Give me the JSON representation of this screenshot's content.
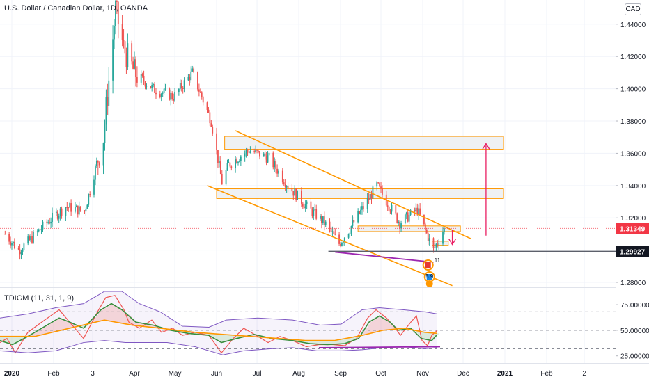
{
  "header": {
    "title": "U.S. Dollar / Canadian Dollar, 1D, OANDA",
    "currency_button": "CAD"
  },
  "indicator": {
    "label": "TDIGM (11, 31, 1, 9)",
    "ticks": [
      "75.00000",
      "50.00000",
      "25.00000"
    ]
  },
  "price_tags": {
    "last": "1.31349",
    "support": "1.29927"
  },
  "markers": {
    "earnings_top": "11",
    "earnings_bottom": "5 9"
  },
  "colors": {
    "up": "#26a69a",
    "down": "#ef5350",
    "channel": "#ff9800",
    "zone_border": "#ff9800",
    "zone_fill": "#eceff1",
    "arrow": "#e91e63",
    "support_line": "#5d606b",
    "divergence": "#9c27b0",
    "last_tag": "#f23645"
  },
  "chart_data": [
    {
      "type": "candlestick",
      "title": "U.S. Dollar / Canadian Dollar, 1D, OANDA",
      "x_ticks": [
        "2020",
        "Feb",
        "3",
        "Apr",
        "May",
        "Jun",
        "Jul",
        "Aug",
        "Sep",
        "Oct",
        "Nov",
        "Dec",
        "2021",
        "Feb",
        "2"
      ],
      "y_ticks": [
        "1.44000",
        "1.42000",
        "1.40000",
        "1.38000",
        "1.36000",
        "1.34000",
        "1.32000",
        "1.30000",
        "1.28000"
      ],
      "ylim": [
        1.277,
        1.455
      ],
      "price_anchors": [
        {
          "date": "2019-12-27",
          "close": 1.31
        },
        {
          "date": "2020-01-06",
          "close": 1.3
        },
        {
          "date": "2020-01-13",
          "close": 1.305
        },
        {
          "date": "2020-01-27",
          "close": 1.317
        },
        {
          "date": "2020-02-10",
          "close": 1.327
        },
        {
          "date": "2020-02-24",
          "close": 1.324
        },
        {
          "date": "2020-03-09",
          "close": 1.37
        },
        {
          "date": "2020-03-18",
          "close": 1.449
        },
        {
          "date": "2020-03-24",
          "close": 1.425
        },
        {
          "date": "2020-04-01",
          "close": 1.41
        },
        {
          "date": "2020-04-15",
          "close": 1.4
        },
        {
          "date": "2020-04-30",
          "close": 1.395
        },
        {
          "date": "2020-05-14",
          "close": 1.41
        },
        {
          "date": "2020-05-28",
          "close": 1.38
        },
        {
          "date": "2020-06-05",
          "close": 1.342
        },
        {
          "date": "2020-06-10",
          "close": 1.353
        },
        {
          "date": "2020-06-25",
          "close": 1.362
        },
        {
          "date": "2020-07-10",
          "close": 1.357
        },
        {
          "date": "2020-07-24",
          "close": 1.34
        },
        {
          "date": "2020-08-07",
          "close": 1.327
        },
        {
          "date": "2020-08-20",
          "close": 1.317
        },
        {
          "date": "2020-08-31",
          "close": 1.304
        },
        {
          "date": "2020-09-10",
          "close": 1.316
        },
        {
          "date": "2020-09-28",
          "close": 1.34
        },
        {
          "date": "2020-10-15",
          "close": 1.317
        },
        {
          "date": "2020-10-28",
          "close": 1.325
        },
        {
          "date": "2020-11-04",
          "close": 1.31
        },
        {
          "date": "2020-11-09",
          "close": 1.3
        },
        {
          "date": "2020-11-17",
          "close": 1.31349
        }
      ],
      "last_price": 1.31349,
      "support_level": 1.29927,
      "zones": [
        {
          "from": "2020-06-07",
          "to": "2020-12-31",
          "low": 1.3625,
          "high": 1.3705
        },
        {
          "from": "2020-06-01",
          "to": "2020-12-31",
          "low": 1.332,
          "high": 1.338
        },
        {
          "from": "2020-09-14",
          "to": "2020-11-29",
          "low": 1.3115,
          "high": 1.315
        },
        {
          "from": "2020-11-08",
          "to": "2020-11-20",
          "low": 1.303,
          "high": 1.3055
        }
      ],
      "channel_upper": [
        {
          "date": "2020-06-15",
          "price": 1.374
        },
        {
          "date": "2020-12-07",
          "price": 1.307
        }
      ],
      "channel_lower": [
        {
          "date": "2020-05-25",
          "price": 1.34
        },
        {
          "date": "2020-11-23",
          "price": 1.278
        }
      ],
      "up_arrow": {
        "date": "2020-12-18",
        "from": 1.309,
        "to": 1.366
      },
      "down_arrow": {
        "date": "2020-11-23",
        "from": 1.3125,
        "to": 1.3035
      }
    },
    {
      "type": "line",
      "title": "TDIGM (11, 31, 1, 9)",
      "y_ticks": [
        "75.00000",
        "50.00000",
        "25.00000"
      ],
      "ylim": [
        18,
        90
      ],
      "levels": [
        68,
        50,
        32
      ],
      "series": [
        {
          "name": "RSI",
          "color": "#ef5350",
          "values": [
            [
              0,
              38
            ],
            [
              10,
              42
            ],
            [
              22,
              28
            ],
            [
              40,
              48
            ],
            [
              60,
              58
            ],
            [
              85,
              70
            ],
            [
              95,
              62
            ],
            [
              120,
              42
            ],
            [
              140,
              68
            ],
            [
              152,
              82
            ],
            [
              165,
              84
            ],
            [
              178,
              70
            ],
            [
              185,
              58
            ],
            [
              200,
              52
            ],
            [
              218,
              60
            ],
            [
              232,
              48
            ],
            [
              248,
              52
            ],
            [
              262,
              45
            ],
            [
              280,
              48
            ],
            [
              300,
              45
            ],
            [
              318,
              28
            ],
            [
              335,
              42
            ],
            [
              350,
              52
            ],
            [
              368,
              45
            ],
            [
              385,
              38
            ],
            [
              402,
              44
            ],
            [
              420,
              40
            ],
            [
              440,
              34
            ],
            [
              458,
              36
            ],
            [
              478,
              36
            ],
            [
              495,
              35
            ],
            [
              512,
              42
            ],
            [
              528,
              62
            ],
            [
              540,
              70
            ],
            [
              555,
              62
            ],
            [
              568,
              52
            ],
            [
              575,
              45
            ],
            [
              590,
              58
            ],
            [
              598,
              64
            ],
            [
              606,
              40
            ],
            [
              614,
              35
            ],
            [
              620,
              45
            ],
            [
              628,
              50
            ]
          ]
        },
        {
          "name": "Signal",
          "color": "#388e3c",
          "values": [
            [
              0,
              40
            ],
            [
              18,
              36
            ],
            [
              40,
              44
            ],
            [
              60,
              52
            ],
            [
              85,
              62
            ],
            [
              100,
              58
            ],
            [
              120,
              52
            ],
            [
              145,
              70
            ],
            [
              160,
              76
            ],
            [
              175,
              70
            ],
            [
              195,
              58
            ],
            [
              220,
              55
            ],
            [
              245,
              50
            ],
            [
              270,
              47
            ],
            [
              300,
              45
            ],
            [
              318,
              38
            ],
            [
              340,
              42
            ],
            [
              365,
              46
            ],
            [
              390,
              42
            ],
            [
              420,
              40
            ],
            [
              445,
              37
            ],
            [
              470,
              36
            ],
            [
              495,
              37
            ],
            [
              515,
              42
            ],
            [
              530,
              58
            ],
            [
              545,
              64
            ],
            [
              560,
              58
            ],
            [
              572,
              50
            ],
            [
              590,
              52
            ],
            [
              605,
              42
            ],
            [
              620,
              40
            ],
            [
              628,
              46
            ]
          ]
        },
        {
          "name": "Base",
          "color": "#ff9800",
          "values": [
            [
              0,
              44
            ],
            [
              50,
              44
            ],
            [
              100,
              52
            ],
            [
              150,
              60
            ],
            [
              190,
              55
            ],
            [
              230,
              52
            ],
            [
              280,
              48
            ],
            [
              320,
              46
            ],
            [
              360,
              44
            ],
            [
              400,
              42
            ],
            [
              440,
              40
            ],
            [
              480,
              40
            ],
            [
              520,
              45
            ],
            [
              550,
              50
            ],
            [
              580,
              52
            ],
            [
              610,
              48
            ],
            [
              628,
              47
            ]
          ]
        },
        {
          "name": "Upper band",
          "color": "#7e57c2",
          "values": [
            [
              0,
              62
            ],
            [
              40,
              66
            ],
            [
              80,
              72
            ],
            [
              120,
              76
            ],
            [
              150,
              88
            ],
            [
              175,
              88
            ],
            [
              200,
              76
            ],
            [
              230,
              68
            ],
            [
              262,
              54
            ],
            [
              300,
              53
            ],
            [
              325,
              60
            ],
            [
              370,
              62
            ],
            [
              420,
              60
            ],
            [
              460,
              55
            ],
            [
              490,
              56
            ],
            [
              520,
              70
            ],
            [
              545,
              72
            ],
            [
              580,
              70
            ],
            [
              610,
              68
            ],
            [
              628,
              66
            ]
          ]
        },
        {
          "name": "Lower band",
          "color": "#7e57c2",
          "values": [
            [
              0,
              30
            ],
            [
              40,
              28
            ],
            [
              80,
              30
            ],
            [
              120,
              38
            ],
            [
              150,
              40
            ],
            [
              180,
              38
            ],
            [
              210,
              38
            ],
            [
              240,
              38
            ],
            [
              280,
              34
            ],
            [
              320,
              26
            ],
            [
              350,
              30
            ],
            [
              390,
              32
            ],
            [
              420,
              33
            ],
            [
              455,
              30
            ],
            [
              490,
              30
            ],
            [
              520,
              31
            ],
            [
              550,
              33
            ],
            [
              580,
              34
            ],
            [
              610,
              32
            ],
            [
              628,
              33
            ]
          ]
        }
      ]
    }
  ]
}
